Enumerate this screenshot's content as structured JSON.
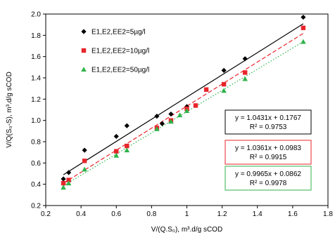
{
  "chart_data": {
    "type": "scatter",
    "xlabel": "V/(Q.S₀), m³.d/g sCOD",
    "ylabel": "V/Q(S₀-S), m³.d/g sCOD",
    "xlim": [
      0.2,
      1.8
    ],
    "ylim": [
      0.2,
      2.0
    ],
    "xticks": [
      "0.2",
      "0.4",
      "0.6",
      "0.8",
      "1",
      "1.2",
      "1.4",
      "1.6",
      "1.8"
    ],
    "yticks": [
      "0.2",
      "0.4",
      "0.6",
      "0.8",
      "1.0",
      "1.2",
      "1.4",
      "1.6",
      "1.8",
      "2.0"
    ],
    "xtick_values": [
      0.2,
      0.4,
      0.6,
      0.8,
      1.0,
      1.2,
      1.4,
      1.6,
      1.8
    ],
    "ytick_values": [
      0.2,
      0.4,
      0.6,
      0.8,
      1.0,
      1.2,
      1.4,
      1.6,
      1.8,
      2.0
    ],
    "grid": "none",
    "legend_placement": "top-left",
    "series": [
      {
        "name": "E1,E2,EE2=5µg/l",
        "marker": "diamond",
        "color": "#000000",
        "line_style": "solid",
        "x": [
          0.3,
          0.33,
          0.42,
          0.6,
          0.66,
          0.83,
          0.86,
          0.91,
          1.0,
          1.21,
          1.33,
          1.66
        ],
        "y": [
          0.45,
          0.51,
          0.72,
          0.85,
          0.95,
          1.04,
          0.97,
          1.06,
          1.13,
          1.47,
          1.58,
          1.97
        ],
        "fit": {
          "slope": 1.0431,
          "intercept": 0.1767,
          "x_range": [
            0.3,
            1.66
          ]
        },
        "equation": "y = 1.0431x + 0.1767",
        "r2": "R² = 0.9753"
      },
      {
        "name": "E1,E2,EE2=10µg/l",
        "marker": "square",
        "color": "#e8252b",
        "line_style": "dashed",
        "x": [
          0.3,
          0.33,
          0.42,
          0.6,
          0.66,
          0.83,
          0.91,
          1.0,
          1.05,
          1.11,
          1.21,
          1.33,
          1.66
        ],
        "y": [
          0.41,
          0.44,
          0.62,
          0.71,
          0.76,
          0.93,
          1.0,
          1.11,
          1.14,
          1.29,
          1.34,
          1.45,
          1.87
        ],
        "fit": {
          "slope": 1.0361,
          "intercept": 0.0983,
          "x_range": [
            0.3,
            1.66
          ]
        },
        "equation": "y = 1.0361x + 0.0983",
        "r2": "R² = 0.9915"
      },
      {
        "name": "E1,E2,EE2=50µg/l",
        "marker": "triangle",
        "color": "#2fb34a",
        "line_style": "dotted",
        "x": [
          0.3,
          0.33,
          0.42,
          0.6,
          0.66,
          0.83,
          0.91,
          0.96,
          1.0,
          1.21,
          1.33,
          1.66
        ],
        "y": [
          0.37,
          0.41,
          0.54,
          0.67,
          0.72,
          0.92,
          0.99,
          1.05,
          1.09,
          1.28,
          1.39,
          1.74
        ],
        "fit": {
          "slope": 0.9965,
          "intercept": 0.0862,
          "x_range": [
            0.3,
            1.66
          ]
        },
        "equation": "y = 0.9965x + 0.0862",
        "r2": "R² = 0.9978"
      }
    ],
    "equation_box_color_0": "#000000",
    "equation_box_color_1": "#e8252b",
    "equation_box_color_2": "#2fb34a"
  }
}
